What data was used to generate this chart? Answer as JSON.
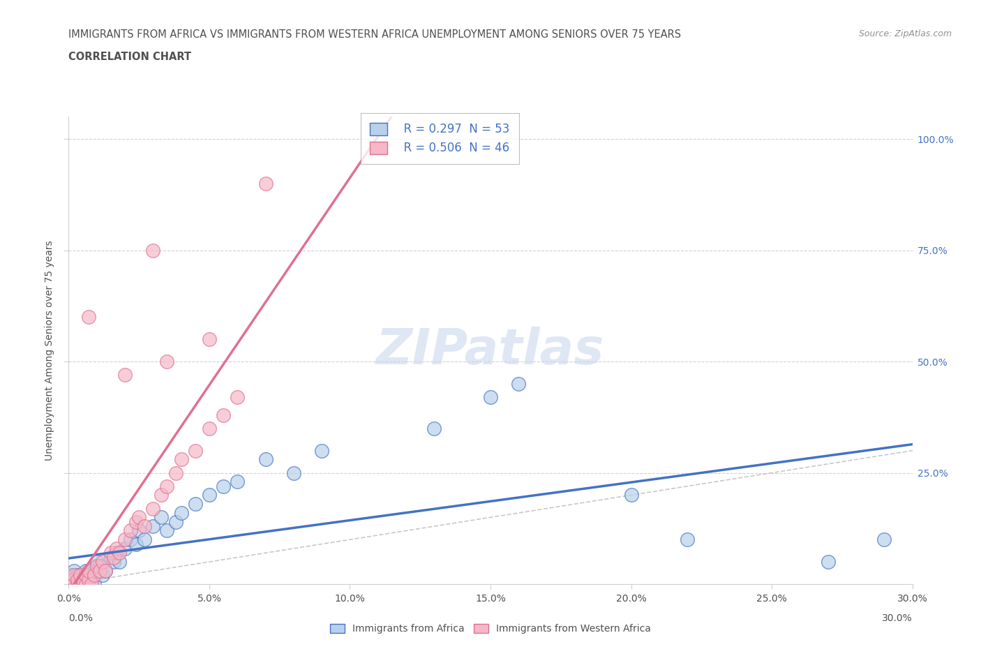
{
  "title_line1": "IMMIGRANTS FROM AFRICA VS IMMIGRANTS FROM WESTERN AFRICA UNEMPLOYMENT AMONG SENIORS OVER 75 YEARS",
  "title_line2": "CORRELATION CHART",
  "source_text": "Source: ZipAtlas.com",
  "ylabel": "Unemployment Among Seniors over 75 years",
  "xlim": [
    0.0,
    0.3
  ],
  "ylim": [
    0.0,
    1.05
  ],
  "watermark": "ZIPatlas",
  "legend_r1": "R = 0.297  N = 53",
  "legend_r2": "R = 0.506  N = 46",
  "color_africa": "#b8d0ea",
  "color_west_africa": "#f4b8c8",
  "line_color_africa": "#4472c4",
  "line_color_west_africa": "#e07090",
  "title_color": "#505050",
  "source_color": "#909090",
  "africa_x": [
    0.001,
    0.001,
    0.001,
    0.002,
    0.002,
    0.002,
    0.003,
    0.003,
    0.004,
    0.004,
    0.005,
    0.005,
    0.005,
    0.006,
    0.006,
    0.007,
    0.007,
    0.008,
    0.008,
    0.009,
    0.009,
    0.01,
    0.011,
    0.012,
    0.013,
    0.015,
    0.016,
    0.017,
    0.018,
    0.02,
    0.022,
    0.024,
    0.025,
    0.027,
    0.03,
    0.033,
    0.035,
    0.038,
    0.04,
    0.045,
    0.05,
    0.055,
    0.06,
    0.07,
    0.08,
    0.09,
    0.13,
    0.15,
    0.16,
    0.2,
    0.22,
    0.27,
    0.29
  ],
  "africa_y": [
    0.0,
    0.0,
    0.02,
    0.0,
    0.01,
    0.03,
    0.0,
    0.02,
    0.0,
    0.01,
    0.0,
    0.01,
    0.02,
    0.0,
    0.03,
    0.0,
    0.02,
    0.0,
    0.01,
    0.0,
    0.03,
    0.05,
    0.04,
    0.02,
    0.03,
    0.06,
    0.05,
    0.07,
    0.05,
    0.08,
    0.1,
    0.09,
    0.12,
    0.1,
    0.13,
    0.15,
    0.12,
    0.14,
    0.16,
    0.18,
    0.2,
    0.22,
    0.23,
    0.28,
    0.25,
    0.3,
    0.35,
    0.42,
    0.45,
    0.2,
    0.1,
    0.05,
    0.1
  ],
  "west_africa_x": [
    0.001,
    0.001,
    0.001,
    0.002,
    0.002,
    0.002,
    0.003,
    0.003,
    0.004,
    0.004,
    0.005,
    0.005,
    0.006,
    0.006,
    0.007,
    0.007,
    0.008,
    0.009,
    0.01,
    0.011,
    0.012,
    0.013,
    0.015,
    0.016,
    0.017,
    0.018,
    0.02,
    0.022,
    0.024,
    0.025,
    0.027,
    0.03,
    0.033,
    0.035,
    0.038,
    0.04,
    0.045,
    0.05,
    0.055,
    0.06,
    0.02,
    0.035,
    0.05,
    0.007,
    0.03,
    0.07
  ],
  "west_africa_y": [
    0.0,
    0.0,
    0.01,
    0.0,
    0.01,
    0.02,
    0.0,
    0.01,
    0.0,
    0.02,
    0.0,
    0.01,
    0.0,
    0.02,
    0.01,
    0.03,
    0.0,
    0.02,
    0.04,
    0.03,
    0.05,
    0.03,
    0.07,
    0.06,
    0.08,
    0.07,
    0.1,
    0.12,
    0.14,
    0.15,
    0.13,
    0.17,
    0.2,
    0.22,
    0.25,
    0.28,
    0.3,
    0.35,
    0.38,
    0.42,
    0.47,
    0.5,
    0.55,
    0.6,
    0.75,
    0.9
  ]
}
